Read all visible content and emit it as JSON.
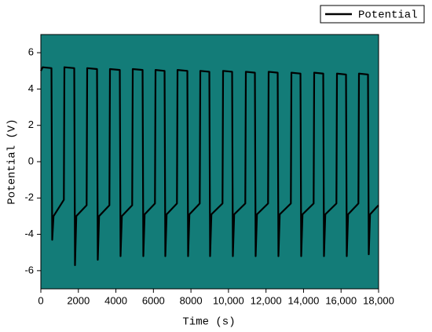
{
  "chart_data": {
    "type": "line",
    "xlabel": "Time (s)",
    "ylabel": "Potential (V)",
    "x": [
      0,
      100,
      566,
      606,
      676,
      1226,
      1256,
      1780,
      1820,
      1890,
      2440,
      2470,
      2994,
      3034,
      3104,
      3654,
      3684,
      4208,
      4248,
      4318,
      4868,
      4898,
      5422,
      5462,
      5532,
      6082,
      6112,
      6594,
      6634,
      6704,
      7254,
      7284,
      7808,
      7848,
      7918,
      8468,
      8498,
      8980,
      9020,
      9090,
      9682,
      9712,
      10194,
      10234,
      10304,
      10896,
      10926,
      11408,
      11448,
      11518,
      12110,
      12140,
      12622,
      12662,
      12732,
      13324,
      13354,
      13836,
      13876,
      13946,
      14538,
      14568,
      15050,
      15090,
      15160,
      15752,
      15782,
      16264,
      16304,
      16374,
      16924,
      16954,
      17436,
      17476,
      17546,
      17900,
      18000
    ],
    "series": [
      {
        "name": "Potential",
        "color": "#000000",
        "values": [
          5.0,
          5.2,
          5.15,
          -4.3,
          -3.0,
          -2.1,
          5.2,
          5.15,
          -5.7,
          -3.0,
          -2.4,
          5.15,
          5.1,
          -5.4,
          -3.0,
          -2.4,
          5.1,
          5.05,
          -5.2,
          -3.0,
          -2.4,
          5.1,
          5.05,
          -5.2,
          -2.9,
          -2.3,
          5.05,
          5.0,
          -5.2,
          -2.9,
          -2.3,
          5.05,
          5.0,
          -5.2,
          -2.9,
          -2.3,
          5.0,
          4.95,
          -5.2,
          -2.9,
          -2.3,
          5.0,
          4.95,
          -5.2,
          -2.9,
          -2.3,
          4.95,
          4.9,
          -5.2,
          -2.9,
          -2.3,
          4.95,
          4.9,
          -5.2,
          -2.9,
          -2.3,
          4.9,
          4.85,
          -5.2,
          -2.9,
          -2.3,
          4.9,
          4.85,
          -5.2,
          -2.9,
          -2.3,
          4.85,
          4.8,
          -5.2,
          -2.9,
          -2.3,
          4.85,
          4.8,
          -5.1,
          -2.9,
          -2.5,
          -2.4
        ]
      }
    ],
    "xlim": [
      0,
      18000
    ],
    "ylim": [
      -7,
      7
    ],
    "xticks": [
      0,
      2000,
      4000,
      6000,
      8000,
      {
        "value": 10000,
        "label": "10,000"
      },
      {
        "value": 12000,
        "label": "12,000"
      },
      {
        "value": 14000,
        "label": "14,000"
      },
      {
        "value": 16000,
        "label": "16,000"
      },
      {
        "value": 18000,
        "label": "18,000"
      }
    ],
    "yticks": [
      -6,
      -4,
      -2,
      0,
      2,
      4,
      6
    ],
    "background": "#137c78",
    "legend": "top-right"
  }
}
